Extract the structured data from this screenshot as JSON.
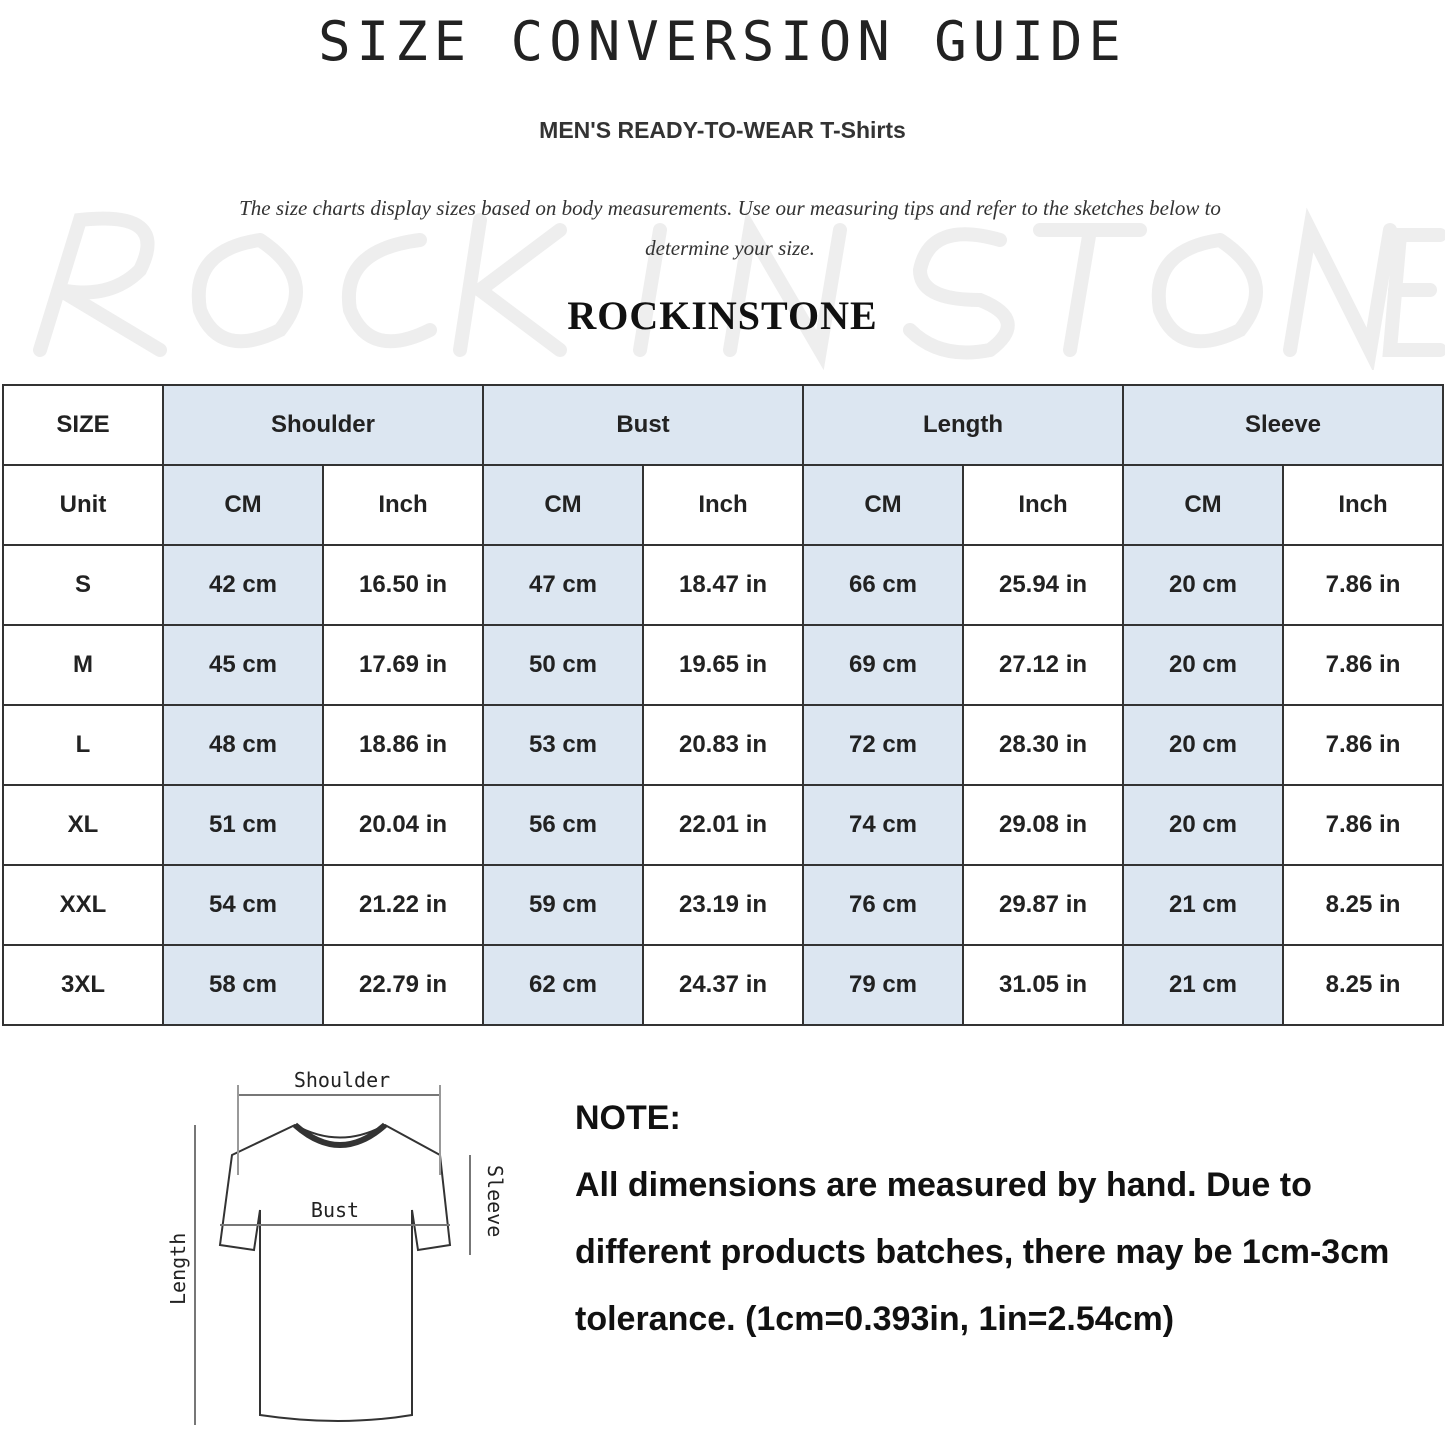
{
  "title": "SIZE CONVERSION GUIDE",
  "subtitle": "MEN'S READY-TO-WEAR T-Shirts",
  "description": "The size charts display sizes based on body measurements. Use our measuring tips and refer to the sketches below to determine your size.",
  "brand": "ROCKINSTONE",
  "watermark": "ROCK IN STONE",
  "table": {
    "header": [
      "SIZE",
      "Shoulder",
      "Bust",
      "Length",
      "Sleeve"
    ],
    "units": [
      "Unit",
      "CM",
      "Inch",
      "CM",
      "Inch",
      "CM",
      "Inch",
      "CM",
      "Inch"
    ],
    "rows": [
      [
        "S",
        "42 cm",
        "16.50 in",
        "47 cm",
        "18.47 in",
        "66 cm",
        "25.94 in",
        "20 cm",
        "7.86 in"
      ],
      [
        "M",
        "45 cm",
        "17.69 in",
        "50 cm",
        "19.65 in",
        "69 cm",
        "27.12 in",
        "20 cm",
        "7.86 in"
      ],
      [
        "L",
        "48 cm",
        "18.86 in",
        "53 cm",
        "20.83 in",
        "72 cm",
        "28.30 in",
        "20 cm",
        "7.86 in"
      ],
      [
        "XL",
        "51 cm",
        "20.04 in",
        "56 cm",
        "22.01 in",
        "74 cm",
        "29.08 in",
        "20 cm",
        "7.86 in"
      ],
      [
        "XXL",
        "54 cm",
        "21.22 in",
        "59 cm",
        "23.19 in",
        "76 cm",
        "29.87 in",
        "21 cm",
        "8.25 in"
      ],
      [
        "3XL",
        "58 cm",
        "22.79 in",
        "62 cm",
        "24.37 in",
        "79 cm",
        "31.05 in",
        "21 cm",
        "8.25 in"
      ]
    ],
    "highlight_color": "#dce6f1"
  },
  "sketch": {
    "shoulder": "Shoulder",
    "bust": "Bust",
    "sleeve": "Sleeve",
    "length": "Length"
  },
  "note": {
    "heading": "NOTE:",
    "text": "All dimensions are measured by hand. Due to different products batches, there may be 1cm-3cm tolerance. (1cm=0.393in, 1in=2.54cm)"
  }
}
